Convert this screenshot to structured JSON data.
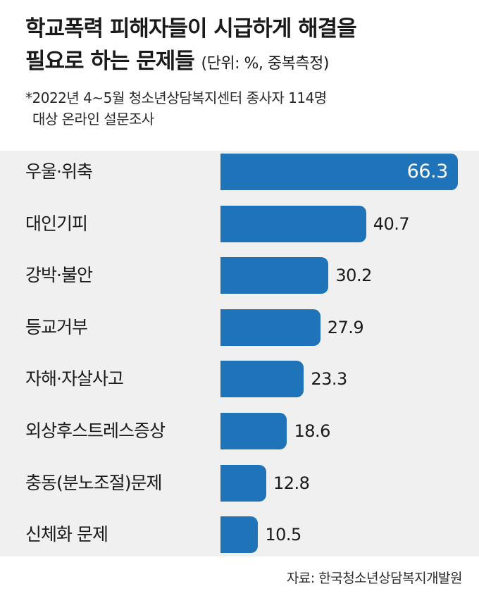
{
  "title_line1": "학교폭력 피해자들이 시급하게 해결을",
  "title_line2": "필요로 하는 문제들",
  "title_unit": "(단위: %, 중복측정)",
  "note_line1": "*2022년 4~5월 청소년상담복지센터 종사자 114명",
  "note_line2": "대상 온라인 설문조사",
  "source": "자료: 한국청소년상담복지개발원",
  "colors": {
    "bar": "#1f73b9",
    "background_panel": "#f0f0f0"
  },
  "chart_data": {
    "type": "bar",
    "orientation": "horizontal",
    "categories": [
      "우울·위축",
      "대인기피",
      "강박·불안",
      "등교거부",
      "자해·자살사고",
      "외상후스트레스증상",
      "충동(분노조절)문제",
      "신체화 문제"
    ],
    "values": [
      66.3,
      40.7,
      30.2,
      27.9,
      23.3,
      18.6,
      12.8,
      10.5
    ],
    "value_labels": [
      "66.3",
      "40.7",
      "30.2",
      "27.9",
      "23.3",
      "18.6",
      "12.8",
      "10.5"
    ],
    "title": "학교폭력 피해자들이 시급하게 해결을 필요로 하는 문제들",
    "xlabel": "",
    "ylabel": "",
    "grid": false
  }
}
